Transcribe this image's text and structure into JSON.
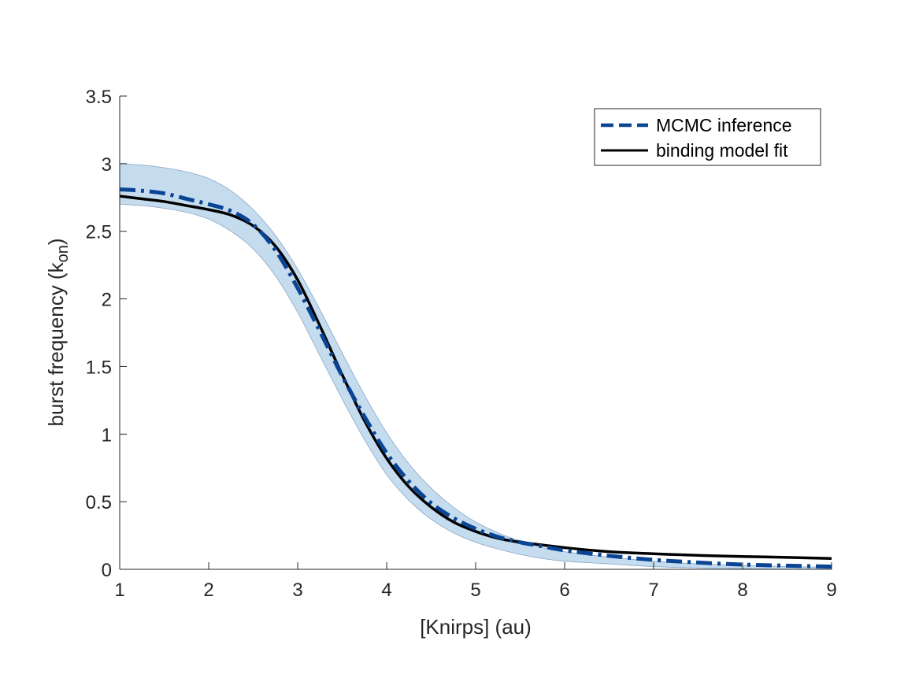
{
  "chart_data": {
    "type": "line",
    "title": "",
    "xlabel": "[Knirps] (au)",
    "ylabel_main": "burst frequency (k",
    "ylabel_sub": "on",
    "ylabel_close": ")",
    "xlim": [
      1,
      9
    ],
    "ylim": [
      0,
      3.5
    ],
    "xticks": [
      1,
      2,
      3,
      4,
      5,
      6,
      7,
      8,
      9
    ],
    "yticks": [
      0,
      0.5,
      1,
      1.5,
      2,
      2.5,
      3,
      3.5
    ],
    "xtick_labels": [
      "1",
      "2",
      "3",
      "4",
      "5",
      "6",
      "7",
      "8",
      "9"
    ],
    "ytick_labels": [
      "0",
      "0.5",
      "1",
      "1.5",
      "2",
      "2.5",
      "3",
      "3.5"
    ],
    "grid": false,
    "legend_position": "top-right",
    "x": [
      1,
      1.25,
      1.5,
      1.75,
      2,
      2.25,
      2.5,
      2.75,
      3,
      3.25,
      3.5,
      3.75,
      4,
      4.25,
      4.5,
      4.75,
      5,
      5.25,
      5.5,
      5.75,
      6,
      6.5,
      7,
      7.5,
      8,
      8.5,
      9
    ],
    "band": {
      "upper": [
        3.0,
        2.99,
        2.97,
        2.94,
        2.89,
        2.8,
        2.66,
        2.47,
        2.22,
        1.92,
        1.6,
        1.29,
        1.01,
        0.78,
        0.6,
        0.46,
        0.35,
        0.27,
        0.21,
        0.16,
        0.13,
        0.09,
        0.06,
        0.04,
        0.03,
        0.02,
        0.015
      ],
      "lower": [
        2.7,
        2.69,
        2.67,
        2.64,
        2.59,
        2.5,
        2.37,
        2.17,
        1.9,
        1.58,
        1.26,
        0.96,
        0.7,
        0.51,
        0.37,
        0.27,
        0.2,
        0.15,
        0.11,
        0.08,
        0.06,
        0.04,
        0.02,
        0.01,
        0.005,
        0.0,
        0.0
      ],
      "color": "#c5dcef",
      "edge_color": "#8aa7c4"
    },
    "series": [
      {
        "name": "MCMC inference",
        "style": "dashed",
        "color": "#0a4494",
        "values": [
          2.81,
          2.8,
          2.78,
          2.74,
          2.7,
          2.65,
          2.55,
          2.36,
          2.08,
          1.76,
          1.43,
          1.13,
          0.86,
          0.65,
          0.49,
          0.38,
          0.3,
          0.24,
          0.2,
          0.17,
          0.14,
          0.1,
          0.07,
          0.05,
          0.035,
          0.027,
          0.02
        ]
      },
      {
        "name": "binding model fit",
        "style": "solid",
        "color": "#000000",
        "values": [
          2.76,
          2.74,
          2.72,
          2.69,
          2.66,
          2.62,
          2.54,
          2.39,
          2.14,
          1.8,
          1.44,
          1.1,
          0.82,
          0.61,
          0.46,
          0.35,
          0.28,
          0.23,
          0.2,
          0.18,
          0.16,
          0.13,
          0.115,
          0.103,
          0.095,
          0.088,
          0.08
        ]
      }
    ]
  }
}
